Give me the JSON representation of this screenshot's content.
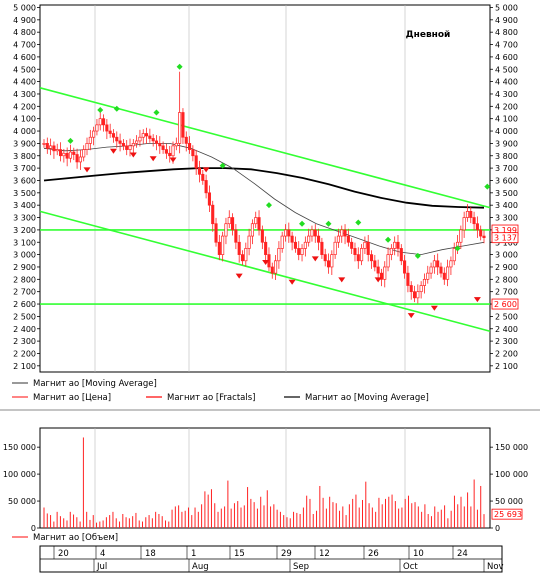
{
  "chart_data": {
    "type": "candlestick",
    "title": "Дневной",
    "price_panel": {
      "ylim": [
        2050,
        5020
      ],
      "y_ticks": [
        2100,
        2200,
        2300,
        2400,
        2500,
        2600,
        2700,
        2800,
        2900,
        3000,
        3100,
        3200,
        3300,
        3400,
        3500,
        3600,
        3700,
        3800,
        3900,
        4000,
        4100,
        4200,
        4300,
        4400,
        4500,
        4600,
        4700,
        4800,
        4900,
        5000
      ],
      "y_tick_labels": [
        "2 100",
        "2 200",
        "2 300",
        "2 400",
        "2 500",
        "2 600",
        "2 700",
        "2 800",
        "2 900",
        "3 000",
        "3 100",
        "3 200",
        "3 300",
        "3 400",
        "3 500",
        "3 600",
        "3 700",
        "3 800",
        "3 900",
        "4 000",
        "4 100",
        "4 200",
        "4 300",
        "4 400",
        "4 500",
        "4 600",
        "4 700",
        "4 800",
        "4 900",
        "5 000"
      ],
      "price_series": [
        3900,
        3860,
        3880,
        3840,
        3850,
        3800,
        3820,
        3780,
        3830,
        3810,
        3750,
        3790,
        3850,
        3900,
        3950,
        4000,
        4050,
        4100,
        4050,
        4000,
        3980,
        3950,
        3920,
        3900,
        3880,
        3850,
        3880,
        3900,
        3920,
        3950,
        3980,
        3960,
        3940,
        3920,
        3900,
        3880,
        3850,
        3820,
        3800,
        3880,
        3900,
        4150,
        3950,
        3900,
        3850,
        3800,
        3700,
        3650,
        3600,
        3500,
        3400,
        3250,
        3100,
        3000,
        3150,
        3250,
        3300,
        3200,
        3100,
        3000,
        2950,
        3050,
        3150,
        3250,
        3300,
        3200,
        3100,
        3000,
        2900,
        2850,
        2950,
        3050,
        3150,
        3200,
        3150,
        3100,
        3050,
        3000,
        3050,
        3100,
        3150,
        3200,
        3150,
        3100,
        3000,
        2950,
        2900,
        3000,
        3100,
        3150,
        3200,
        3150,
        3100,
        3050,
        3000,
        2950,
        3050,
        3100,
        3000,
        2950,
        2900,
        2850,
        2800,
        2900,
        3000,
        3050,
        3100,
        3050,
        2950,
        2850,
        2750,
        2700,
        2650,
        2700,
        2750,
        2800,
        2850,
        2900,
        2950,
        2900,
        2850,
        2800,
        2900,
        2950,
        3050,
        3100,
        3200,
        3300,
        3350,
        3300,
        3250,
        3200,
        3150,
        3137
      ],
      "high_spike": {
        "index": 41,
        "high": 4480,
        "low": 3820
      },
      "moving_average_long": [
        3600,
        3620,
        3640,
        3660,
        3675,
        3690,
        3700,
        3700,
        3690,
        3660,
        3620,
        3570,
        3510,
        3460,
        3420,
        3395,
        3385,
        3380
      ],
      "moving_average_short": [
        3860,
        3840,
        3850,
        3870,
        3880,
        3900,
        3900,
        3860,
        3790,
        3700,
        3580,
        3450,
        3340,
        3250,
        3190,
        3130,
        3070,
        3020,
        3000,
        3040,
        3070,
        3100
      ],
      "channel_upper": {
        "from_value": 4350,
        "to_value": 3380
      },
      "channel_lower": {
        "from_value": 3350,
        "to_value": 2380
      },
      "horizontal_levels": [
        3200,
        2600
      ],
      "fractals_up": [
        {
          "index": 8,
          "value": 3920
        },
        {
          "index": 17,
          "value": 4170
        },
        {
          "index": 22,
          "value": 4180
        },
        {
          "index": 34,
          "value": 4150
        },
        {
          "index": 41,
          "value": 4520
        },
        {
          "index": 54,
          "value": 3720
        },
        {
          "index": 68,
          "value": 3400
        },
        {
          "index": 78,
          "value": 3250
        },
        {
          "index": 86,
          "value": 3250
        },
        {
          "index": 95,
          "value": 3260
        },
        {
          "index": 104,
          "value": 3120
        },
        {
          "index": 113,
          "value": 2990
        },
        {
          "index": 125,
          "value": 3050
        },
        {
          "index": 134,
          "value": 3550
        }
      ],
      "fractals_down": [
        {
          "index": 13,
          "value": 3690
        },
        {
          "index": 21,
          "value": 3840
        },
        {
          "index": 27,
          "value": 3810
        },
        {
          "index": 33,
          "value": 3780
        },
        {
          "index": 39,
          "value": 3770
        },
        {
          "index": 49,
          "value": 3690
        },
        {
          "index": 59,
          "value": 2830
        },
        {
          "index": 67,
          "value": 2940
        },
        {
          "index": 75,
          "value": 2780
        },
        {
          "index": 82,
          "value": 2970
        },
        {
          "index": 90,
          "value": 2800
        },
        {
          "index": 101,
          "value": 2800
        },
        {
          "index": 111,
          "value": 2510
        },
        {
          "index": 118,
          "value": 2570
        },
        {
          "index": 131,
          "value": 2640
        }
      ],
      "last_value_labels": [
        {
          "text": "3 199",
          "value": 3199
        },
        {
          "text": "3 137",
          "value": 3137
        },
        {
          "text": "2 600",
          "value": 2600
        }
      ]
    },
    "legend": [
      {
        "name": "Магнит ао [Moving Average]",
        "color": "#555555"
      },
      {
        "name": "Магнит ао [Цена]",
        "color": "#ff3333"
      },
      {
        "name": "Магнит ао [Fractals]",
        "color": "#ff0000"
      },
      {
        "name": "Магнит ао [Moving Average]",
        "color": "#000000"
      }
    ],
    "volume_panel": {
      "ylim": [
        0,
        180000
      ],
      "y_ticks": [
        0,
        50000,
        100000,
        150000
      ],
      "y_tick_labels": [
        "0",
        "50 000",
        "100 000",
        "150 000"
      ],
      "values": [
        38000,
        27000,
        24000,
        12000,
        30000,
        22000,
        18000,
        14000,
        30000,
        25000,
        20000,
        12000,
        168000,
        30000,
        15000,
        24000,
        10000,
        12000,
        14000,
        20000,
        24000,
        30000,
        18000,
        12000,
        26000,
        20000,
        18000,
        22000,
        28000,
        14000,
        12000,
        20000,
        24000,
        18000,
        30000,
        26000,
        22000,
        14000,
        12000,
        34000,
        40000,
        42000,
        30000,
        32000,
        38000,
        24000,
        38000,
        30000,
        44000,
        68000,
        62000,
        72000,
        46000,
        30000,
        36000,
        40000,
        88000,
        36000,
        46000,
        50000,
        38000,
        42000,
        76000,
        54000,
        48000,
        36000,
        58000,
        42000,
        70000,
        40000,
        44000,
        34000,
        30000,
        24000,
        20000,
        18000,
        30000,
        28000,
        26000,
        38000,
        60000,
        54000,
        26000,
        32000,
        78000,
        56000,
        36000,
        58000,
        48000,
        46000,
        32000,
        40000,
        24000,
        44000,
        54000,
        62000,
        38000,
        52000,
        86000,
        46000,
        38000,
        30000,
        56000,
        44000,
        54000,
        58000,
        62000,
        50000,
        36000,
        38000,
        54000,
        60000,
        46000,
        48000,
        40000,
        30000,
        44000,
        26000,
        22000,
        40000,
        30000,
        34000,
        42000,
        18000,
        32000,
        60000,
        44000,
        58000,
        40000,
        66000,
        40000,
        90000,
        34000,
        78000,
        25693
      ],
      "last_value_label": "25 693",
      "legend": "Магнит ао [Объем]"
    },
    "time_axis": {
      "day_labels": [
        "20",
        "4",
        "18",
        "1",
        "15",
        "29",
        "12",
        "26",
        "10",
        "24"
      ],
      "month_labels": [
        "Jul",
        "Aug",
        "Sep",
        "Oct",
        "Nov"
      ]
    }
  }
}
